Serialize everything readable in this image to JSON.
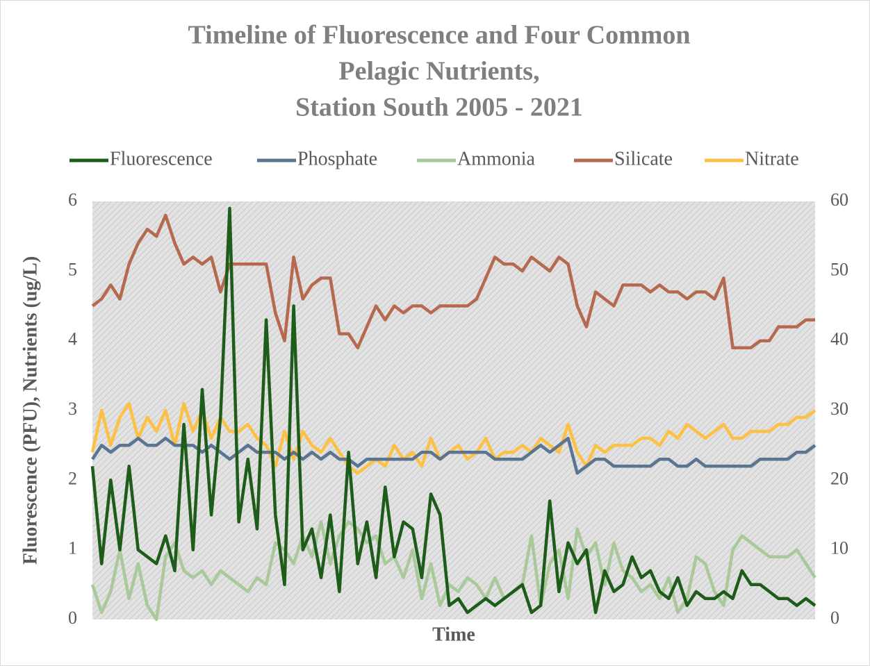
{
  "chart_data": {
    "type": "line",
    "title": [
      "Timeline of Fluorescence and Four Common",
      "Pelagic Nutrients,",
      "Station South 2005 - 2021"
    ],
    "xlabel": "Time",
    "ylabel": "Fluorescence (PFU), Nutrients (ug/L)",
    "legend": "top",
    "grid": false,
    "categories": [
      null,
      null,
      null,
      null,
      null,
      null,
      null,
      null,
      null,
      null,
      null,
      null,
      null,
      null,
      null,
      null,
      null,
      null,
      null,
      null,
      null,
      null,
      null,
      null,
      null,
      null,
      null,
      null,
      null,
      null,
      null,
      null,
      null,
      null,
      null,
      null,
      null,
      null,
      null,
      null,
      null,
      null,
      null,
      null,
      null,
      null,
      null,
      null,
      null,
      null,
      null,
      null,
      null,
      null,
      null,
      null,
      null,
      null,
      null,
      null,
      null,
      null,
      null,
      null,
      null,
      null,
      null,
      null,
      null,
      null,
      null,
      null,
      null,
      null,
      null,
      null,
      null,
      null,
      null,
      null
    ],
    "ylim": [
      0,
      6
    ],
    "yticks": [
      0,
      1,
      2,
      3,
      4,
      5,
      6
    ],
    "y2lim": [
      0,
      60
    ],
    "y2ticks": [
      0,
      10,
      20,
      30,
      40,
      50,
      60
    ],
    "series": [
      {
        "name": "Fluorescence",
        "color": "#1e5c1a",
        "values": [
          2.2,
          0.8,
          2.0,
          1.0,
          2.2,
          1.0,
          0.9,
          0.8,
          1.2,
          0.7,
          2.8,
          1.0,
          3.3,
          1.5,
          2.9,
          5.9,
          1.4,
          2.3,
          1.3,
          4.3,
          1.5,
          0.5,
          4.5,
          1.0,
          1.3,
          0.6,
          1.5,
          0.4,
          2.4,
          0.8,
          1.4,
          0.6,
          1.9,
          0.9,
          1.4,
          1.3,
          0.6,
          1.8,
          1.5,
          0.2,
          0.3,
          0.1,
          0.2,
          0.3,
          0.2,
          0.3,
          0.4,
          0.5,
          0.1,
          0.2,
          1.7,
          0.4,
          1.1,
          0.8,
          1.0,
          0.1,
          0.7,
          0.4,
          0.5,
          0.9,
          0.6,
          0.7,
          0.4,
          0.3,
          0.6,
          0.2,
          0.4,
          0.3,
          0.3,
          0.4,
          0.3,
          0.7,
          0.5,
          0.5,
          0.4,
          0.3,
          0.3,
          0.2,
          0.3,
          0.2
        ]
      },
      {
        "name": "Phosphate",
        "color": "#5b7590",
        "axis": "y2",
        "values": [
          23,
          25,
          24,
          25,
          25,
          26,
          25,
          25,
          26,
          25,
          25,
          25,
          24,
          25,
          24,
          23,
          24,
          25,
          24,
          24,
          24,
          23,
          24,
          23,
          24,
          23,
          24,
          23,
          23,
          22,
          23,
          23,
          23,
          23,
          23,
          23,
          24,
          24,
          23,
          24,
          24,
          24,
          24,
          24,
          23,
          23,
          23,
          23,
          24,
          25,
          24,
          25,
          26,
          21,
          22,
          23,
          23,
          22,
          22,
          22,
          22,
          22,
          23,
          23,
          22,
          22,
          23,
          22,
          22,
          22,
          22,
          22,
          22,
          23,
          23,
          23,
          23,
          24,
          24,
          25
        ]
      },
      {
        "name": "Ammonia",
        "color": "#a9c99a",
        "axis": "y2",
        "values": [
          5,
          1,
          4,
          10,
          3,
          8,
          2,
          0,
          9,
          11,
          7,
          6,
          7,
          5,
          7,
          6,
          5,
          4,
          6,
          5,
          11,
          10,
          8,
          12,
          9,
          14,
          8,
          12,
          14,
          13,
          11,
          12,
          8,
          9,
          6,
          10,
          3,
          8,
          2,
          5,
          4,
          6,
          5,
          3,
          6,
          3,
          4,
          5,
          12,
          2,
          8,
          10,
          3,
          13,
          9,
          11,
          5,
          11,
          7,
          6,
          4,
          5,
          3,
          6,
          1,
          3,
          9,
          8,
          4,
          2,
          10,
          12,
          11,
          10,
          9,
          9,
          9,
          10,
          8,
          6
        ]
      },
      {
        "name": "Silicate",
        "color": "#b5694f",
        "axis": "y2",
        "values": [
          45,
          46,
          48,
          46,
          51,
          54,
          56,
          55,
          58,
          54,
          51,
          52,
          51,
          52,
          47,
          51,
          51,
          51,
          51,
          51,
          44,
          40,
          52,
          46,
          48,
          49,
          49,
          41,
          41,
          39,
          42,
          45,
          43,
          45,
          44,
          45,
          45,
          44,
          45,
          45,
          45,
          45,
          46,
          49,
          52,
          51,
          51,
          50,
          52,
          51,
          50,
          52,
          51,
          45,
          42,
          47,
          46,
          45,
          48,
          48,
          48,
          47,
          48,
          47,
          47,
          46,
          47,
          47,
          46,
          49,
          39,
          39,
          39,
          40,
          40,
          42,
          42,
          42,
          43,
          43
        ]
      },
      {
        "name": "Nitrate",
        "color": "#fcc144",
        "axis": "y2",
        "values": [
          24,
          30,
          25,
          29,
          31,
          26,
          29,
          27,
          30,
          25,
          31,
          27,
          30,
          26,
          29,
          27,
          27,
          28,
          26,
          25,
          22,
          27,
          23,
          27,
          25,
          24,
          26,
          24,
          22,
          21,
          22,
          23,
          22,
          25,
          23,
          24,
          22,
          26,
          23,
          24,
          25,
          23,
          24,
          26,
          23,
          24,
          24,
          25,
          24,
          26,
          25,
          24,
          28,
          24,
          22,
          25,
          24,
          25,
          25,
          25,
          26,
          26,
          25,
          27,
          26,
          28,
          27,
          26,
          27,
          28,
          26,
          26,
          27,
          27,
          27,
          28,
          28,
          29,
          29,
          30
        ]
      }
    ]
  }
}
